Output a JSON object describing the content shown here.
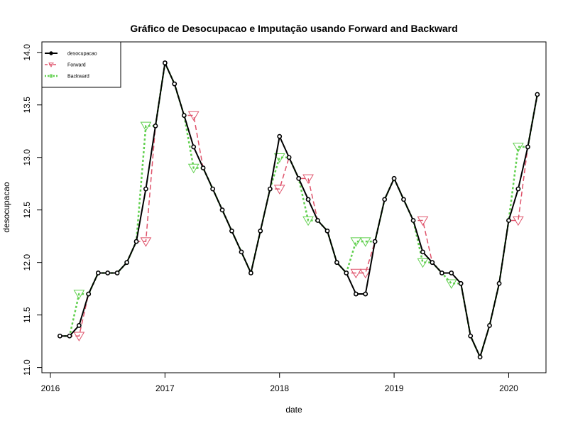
{
  "chart_data": {
    "type": "line",
    "title": "Gráfico de Desocupacao e Imputação usando Forward and Backward",
    "xlabel": "date",
    "ylabel": "desocupacao",
    "xlim": [
      2016.0,
      2020.4
    ],
    "ylim": [
      11.0,
      14.0
    ],
    "x_ticks": [
      "2016",
      "2017",
      "2018",
      "2019",
      "2020"
    ],
    "y_ticks": [
      "11.0",
      "11.5",
      "12.0",
      "12.5",
      "13.0",
      "13.5",
      "14.0"
    ],
    "x": [
      2016.083,
      2016.167,
      2016.25,
      2016.333,
      2016.417,
      2016.5,
      2016.583,
      2016.667,
      2016.75,
      2016.833,
      2016.917,
      2017.0,
      2017.083,
      2017.167,
      2017.25,
      2017.333,
      2017.417,
      2017.5,
      2017.583,
      2017.667,
      2017.75,
      2017.833,
      2017.917,
      2018.0,
      2018.083,
      2018.167,
      2018.25,
      2018.333,
      2018.417,
      2018.5,
      2018.583,
      2018.667,
      2018.75,
      2018.833,
      2018.917,
      2019.0,
      2019.083,
      2019.167,
      2019.25,
      2019.333,
      2019.417,
      2019.5,
      2019.583,
      2019.667,
      2019.75,
      2019.833,
      2019.917,
      2020.0,
      2020.083,
      2020.167,
      2020.25
    ],
    "series": [
      {
        "name": "desocupacao",
        "color": "#000000",
        "line_style": "solid",
        "marker": "circle",
        "values": [
          11.3,
          11.3,
          11.4,
          11.7,
          11.9,
          11.9,
          11.9,
          12.0,
          12.2,
          12.7,
          13.3,
          13.9,
          13.7,
          13.4,
          13.1,
          12.9,
          12.7,
          12.5,
          12.3,
          12.1,
          11.9,
          12.3,
          12.7,
          13.2,
          13.0,
          12.8,
          12.6,
          12.4,
          12.3,
          12.0,
          11.9,
          11.7,
          11.7,
          12.2,
          12.6,
          12.8,
          12.6,
          12.4,
          12.1,
          12.0,
          11.9,
          11.9,
          11.8,
          11.3,
          11.1,
          11.4,
          11.8,
          12.4,
          12.7,
          13.1,
          13.6
        ]
      },
      {
        "name": "Forward",
        "color": "#DF536B",
        "line_style": "dashed",
        "marker": "triangle-down",
        "values": [
          11.3,
          11.3,
          11.3,
          11.7,
          11.9,
          11.9,
          11.9,
          12.0,
          12.2,
          12.2,
          13.3,
          13.9,
          13.7,
          13.4,
          13.4,
          12.9,
          12.7,
          12.5,
          12.3,
          12.1,
          11.9,
          12.3,
          12.7,
          12.7,
          13.0,
          12.8,
          12.8,
          12.4,
          12.3,
          12.0,
          11.9,
          11.9,
          11.9,
          12.2,
          12.6,
          12.8,
          12.6,
          12.4,
          12.4,
          12.0,
          11.9,
          11.9,
          11.8,
          11.3,
          11.1,
          11.4,
          11.8,
          12.4,
          12.4,
          13.1,
          13.6
        ]
      },
      {
        "name": "Backward",
        "color": "#61D04F",
        "line_style": "dotted",
        "marker": "triangle-down",
        "values": [
          11.3,
          11.3,
          11.7,
          11.7,
          11.9,
          11.9,
          11.9,
          12.0,
          12.2,
          13.3,
          13.3,
          13.9,
          13.7,
          13.4,
          12.9,
          12.9,
          12.7,
          12.5,
          12.3,
          12.1,
          11.9,
          12.3,
          12.7,
          13.0,
          13.0,
          12.8,
          12.4,
          12.4,
          12.3,
          12.0,
          11.9,
          12.2,
          12.2,
          12.2,
          12.6,
          12.8,
          12.6,
          12.4,
          12.0,
          12.0,
          11.9,
          11.8,
          11.8,
          11.3,
          11.1,
          11.4,
          11.8,
          12.4,
          13.1,
          13.1,
          13.6
        ]
      }
    ],
    "legend": {
      "position": "top-left",
      "entries": [
        "desocupacao",
        "Forward",
        "Backward"
      ]
    }
  }
}
